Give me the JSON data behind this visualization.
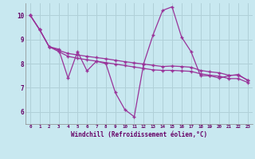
{
  "xlabel": "Windchill (Refroidissement éolien,°C)",
  "background_color": "#c8e8f0",
  "line_color": "#993399",
  "grid_color": "#b0d0d8",
  "xlim": [
    -0.5,
    23.5
  ],
  "ylim": [
    5.5,
    10.5
  ],
  "xticks": [
    0,
    1,
    2,
    3,
    4,
    5,
    6,
    7,
    8,
    9,
    10,
    11,
    12,
    13,
    14,
    15,
    16,
    17,
    18,
    19,
    20,
    21,
    22,
    23
  ],
  "yticks": [
    6,
    7,
    8,
    9,
    10
  ],
  "series": [
    [
      10.0,
      9.4,
      8.7,
      8.6,
      7.4,
      8.5,
      7.7,
      8.1,
      8.0,
      6.8,
      6.1,
      5.8,
      8.0,
      9.2,
      10.2,
      10.35,
      9.1,
      8.5,
      7.5,
      7.5,
      7.4,
      7.5,
      7.55,
      7.3
    ],
    [
      10.0,
      9.4,
      8.7,
      8.55,
      8.42,
      8.36,
      8.3,
      8.25,
      8.2,
      8.14,
      8.08,
      8.03,
      7.98,
      7.93,
      7.88,
      7.9,
      7.88,
      7.85,
      7.72,
      7.66,
      7.62,
      7.52,
      7.52,
      7.32
    ],
    [
      10.0,
      9.4,
      8.7,
      8.5,
      8.3,
      8.22,
      8.16,
      8.1,
      8.04,
      7.98,
      7.92,
      7.86,
      7.8,
      7.74,
      7.72,
      7.72,
      7.7,
      7.68,
      7.58,
      7.52,
      7.48,
      7.38,
      7.38,
      7.22
    ]
  ]
}
